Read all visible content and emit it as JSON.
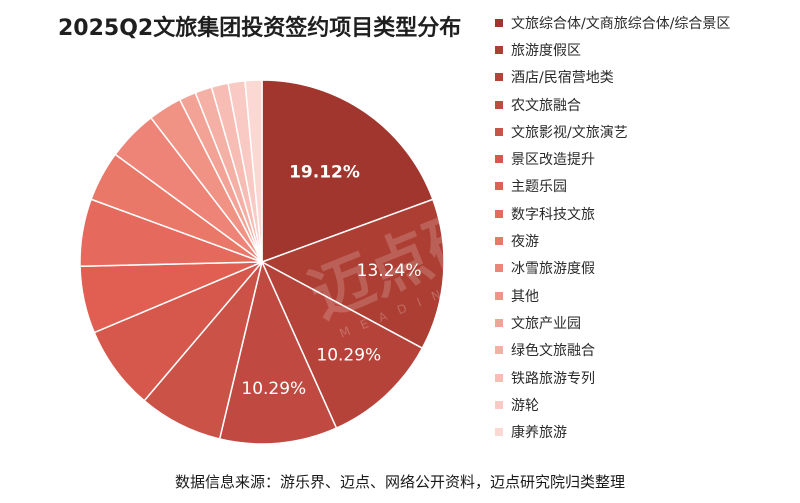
{
  "chart_data": {
    "type": "pie",
    "title": "2025Q2文旅集团投资签约项目类型分布",
    "slices": [
      {
        "label": "文旅综合体/文商旅综合体/综合景区",
        "value": 19.12,
        "data_label": "19.12%",
        "color": "#a0362d"
      },
      {
        "label": "旅游度假区",
        "value": 13.24,
        "data_label": "13.24%",
        "color": "#ad3e33"
      },
      {
        "label": "酒店/民宿营地类",
        "value": 10.29,
        "data_label": "10.29%",
        "color": "#b6433a"
      },
      {
        "label": "农文旅融合",
        "value": 10.29,
        "data_label": "10.29%",
        "color": "#c04a41"
      },
      {
        "label": "文旅影视/文旅演艺",
        "value": 7.35,
        "data_label": "",
        "color": "#ca5247"
      },
      {
        "label": "景区改造提升",
        "value": 7.35,
        "data_label": "",
        "color": "#d6584c"
      },
      {
        "label": "主题乐园",
        "value": 5.88,
        "data_label": "",
        "color": "#e05e52"
      },
      {
        "label": "数字科技文旅",
        "value": 5.88,
        "data_label": "",
        "color": "#e6695d"
      },
      {
        "label": "夜游",
        "value": 4.41,
        "data_label": "",
        "color": "#ea7869"
      },
      {
        "label": "冰雪旅游度假",
        "value": 4.41,
        "data_label": "",
        "color": "#ed8477"
      },
      {
        "label": "其他",
        "value": 2.94,
        "data_label": "",
        "color": "#f09385"
      },
      {
        "label": "文旅产业园",
        "value": 1.47,
        "data_label": "",
        "color": "#f3a296"
      },
      {
        "label": "绿色文旅融合",
        "value": 1.47,
        "data_label": "",
        "color": "#f5b0a6"
      },
      {
        "label": "铁路旅游专列",
        "value": 1.47,
        "data_label": "",
        "color": "#f7bdb4"
      },
      {
        "label": "游轮",
        "value": 1.47,
        "data_label": "",
        "color": "#f9cac3"
      },
      {
        "label": "康养旅游",
        "value": 1.47,
        "data_label": "",
        "color": "#fbd8d3"
      }
    ],
    "legend_position": "right"
  },
  "source_text": "数据信息来源：游乐界、迈点、网络公开资料，迈点研究院归类整理",
  "watermark": {
    "text": "迈点研究院",
    "subtext": "MEADIN ACADEMY"
  }
}
